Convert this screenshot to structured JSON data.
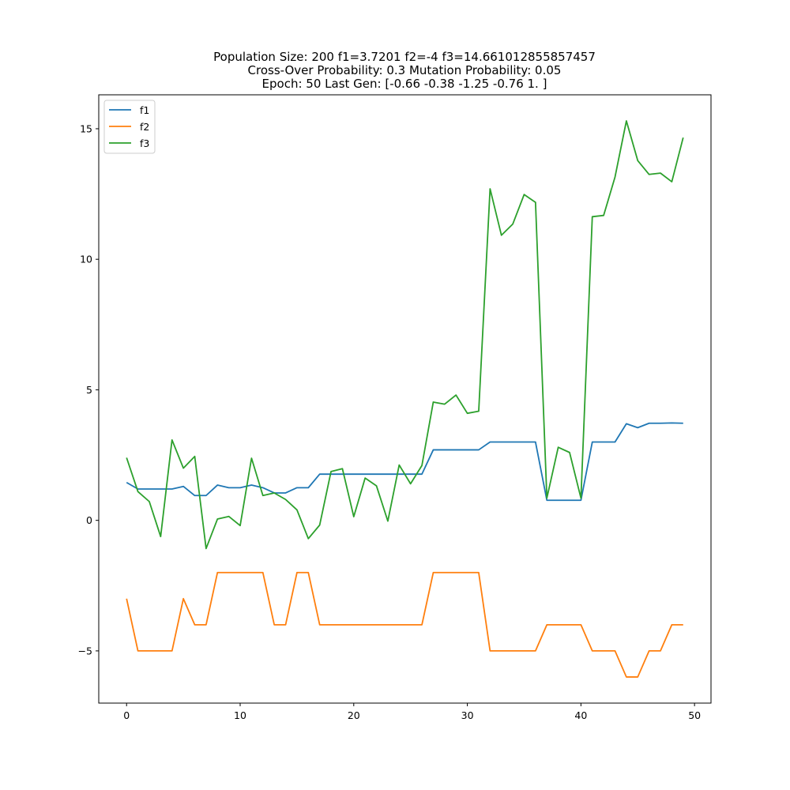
{
  "title_lines": [
    "Population Size: 200 f1=3.7201 f2=-4 f3=14.661012855857457",
    "Cross-Over Probability: 0.3 Mutation Probability: 0.05",
    "Epoch: 50 Last Gen: [-0.66 -0.38 -1.25 -0.76  1.  ]"
  ],
  "chart_data": {
    "type": "line",
    "xlim": [
      -2.45,
      51.45
    ],
    "ylim": [
      -7.0,
      16.3
    ],
    "xticks": [
      0,
      10,
      20,
      30,
      40,
      50
    ],
    "yticks": [
      -5,
      0,
      5,
      10,
      15
    ],
    "xtick_labels": [
      "0",
      "10",
      "20",
      "30",
      "40",
      "50"
    ],
    "ytick_labels": [
      "−5",
      "0",
      "5",
      "10",
      "15"
    ],
    "grid": false,
    "legend_position": "upper-left",
    "x": [
      0,
      1,
      2,
      3,
      4,
      5,
      6,
      7,
      8,
      9,
      10,
      11,
      12,
      13,
      14,
      15,
      16,
      17,
      18,
      19,
      20,
      21,
      22,
      23,
      24,
      25,
      26,
      27,
      28,
      29,
      30,
      31,
      32,
      33,
      34,
      35,
      36,
      37,
      38,
      39,
      40,
      41,
      42,
      43,
      44,
      45,
      46,
      47,
      48,
      49
    ],
    "series": [
      {
        "name": "f1",
        "color": "#1f77b4",
        "values": [
          1.45,
          1.2,
          1.2,
          1.2,
          1.2,
          1.3,
          0.95,
          0.95,
          1.35,
          1.25,
          1.25,
          1.35,
          1.25,
          1.05,
          1.05,
          1.25,
          1.25,
          1.77,
          1.77,
          1.77,
          1.77,
          1.77,
          1.77,
          1.77,
          1.77,
          1.77,
          1.77,
          2.7,
          2.7,
          2.7,
          2.7,
          2.7,
          3.0,
          3.0,
          3.0,
          3.0,
          3.0,
          0.77,
          0.77,
          0.77,
          0.77,
          3.0,
          3.0,
          3.0,
          3.7,
          3.55,
          3.72,
          3.72,
          3.73,
          3.72
        ]
      },
      {
        "name": "f2",
        "color": "#ff7f0e",
        "values": [
          -3,
          -5,
          -5,
          -5,
          -5,
          -3,
          -4,
          -4,
          -2,
          -2,
          -2,
          -2,
          -2,
          -4,
          -4,
          -2,
          -2,
          -4,
          -4,
          -4,
          -4,
          -4,
          -4,
          -4,
          -4,
          -4,
          -4,
          -2,
          -2,
          -2,
          -2,
          -2,
          -5,
          -5,
          -5,
          -5,
          -5,
          -4,
          -4,
          -4,
          -4,
          -5,
          -5,
          -5,
          -6,
          -6,
          -5,
          -5,
          -4,
          -4
        ]
      },
      {
        "name": "f3",
        "color": "#2ca02c",
        "values": [
          2.4,
          1.1,
          0.72,
          -0.62,
          3.08,
          2.0,
          2.45,
          -1.08,
          0.05,
          0.15,
          -0.2,
          2.38,
          0.95,
          1.05,
          0.8,
          0.4,
          -0.7,
          -0.18,
          1.87,
          1.98,
          0.14,
          1.62,
          1.32,
          -0.03,
          2.12,
          1.4,
          2.1,
          4.53,
          4.45,
          4.8,
          4.1,
          4.18,
          12.7,
          10.92,
          11.35,
          12.48,
          12.18,
          0.85,
          2.8,
          2.6,
          0.85,
          11.63,
          11.68,
          13.15,
          15.3,
          13.78,
          13.25,
          13.3,
          12.97,
          14.66
        ]
      }
    ]
  }
}
